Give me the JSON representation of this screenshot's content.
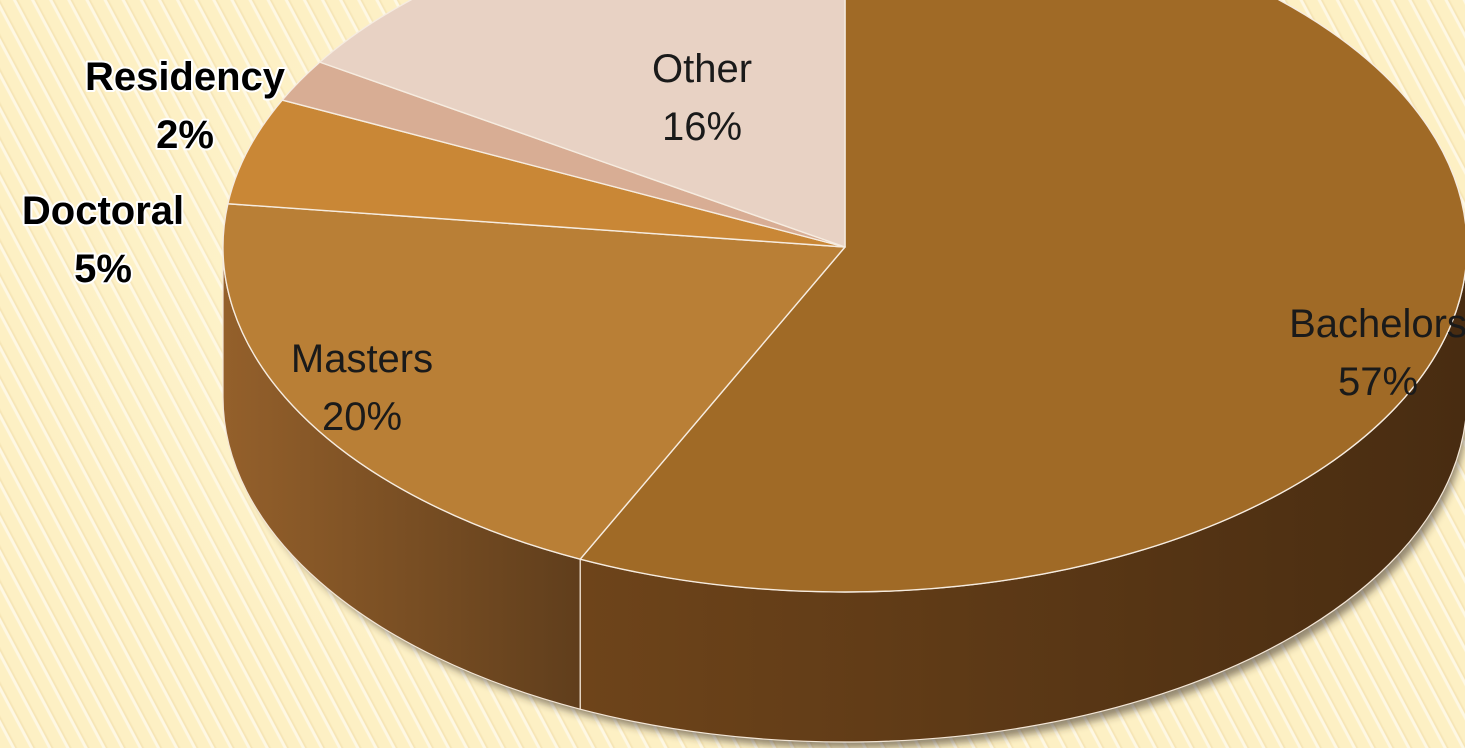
{
  "chart_data": {
    "type": "pie",
    "style": "3d",
    "categories": [
      "Bachelors",
      "Masters",
      "Doctoral",
      "Residency",
      "Other"
    ],
    "values": [
      57,
      20,
      5,
      2,
      16
    ],
    "labels": [
      {
        "name": "Bachelors",
        "percent": "57%"
      },
      {
        "name": "Masters",
        "percent": "20%"
      },
      {
        "name": "Doctoral",
        "percent": "5%"
      },
      {
        "name": "Residency",
        "percent": "2%"
      },
      {
        "name": "Other",
        "percent": "16%"
      }
    ],
    "colors": [
      "#a06a26",
      "#b97f36",
      "#c98736",
      "#d8ad94",
      "#e8d2c4"
    ],
    "side_colors": [
      "#6e441a",
      "#94602b",
      "#a8702c",
      "#b58c75",
      "#c4ab9d"
    ],
    "title": "",
    "legend": "none"
  }
}
